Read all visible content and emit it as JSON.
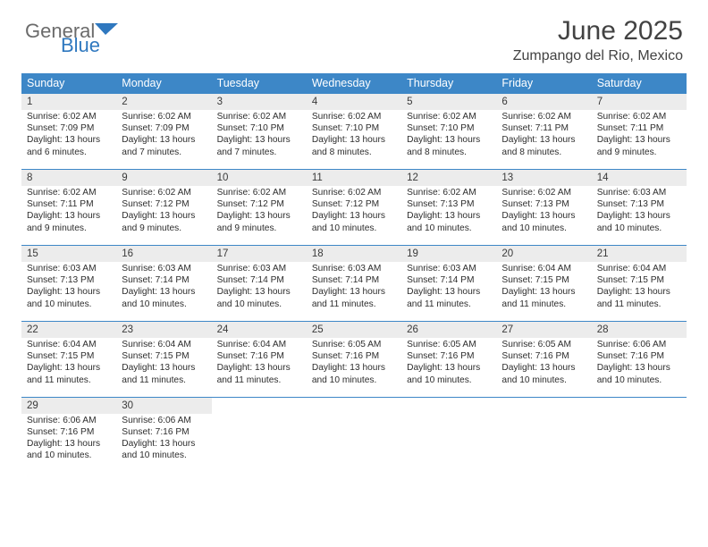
{
  "brand": {
    "text_a": "General",
    "text_b": "Blue",
    "color_a": "#6b6b6b",
    "color_b": "#2f78bf"
  },
  "title": {
    "month": "June 2025",
    "location": "Zumpango del Rio, Mexico",
    "color": "#424242"
  },
  "colors": {
    "header_bg": "#3d87c7",
    "daynum_bg": "#ececec",
    "week_border": "#3d87c7",
    "text": "#2d2d2d"
  },
  "layout": {
    "col_count": 7,
    "row_count": 5,
    "font_size_head": 12.5,
    "font_size_daynum": 11.5,
    "font_size_body": 10.2
  },
  "day_headers": [
    "Sunday",
    "Monday",
    "Tuesday",
    "Wednesday",
    "Thursday",
    "Friday",
    "Saturday"
  ],
  "weeks": [
    [
      {
        "n": "1",
        "sr": "Sunrise: 6:02 AM",
        "ss": "Sunset: 7:09 PM",
        "d1": "Daylight: 13 hours",
        "d2": "and 6 minutes."
      },
      {
        "n": "2",
        "sr": "Sunrise: 6:02 AM",
        "ss": "Sunset: 7:09 PM",
        "d1": "Daylight: 13 hours",
        "d2": "and 7 minutes."
      },
      {
        "n": "3",
        "sr": "Sunrise: 6:02 AM",
        "ss": "Sunset: 7:10 PM",
        "d1": "Daylight: 13 hours",
        "d2": "and 7 minutes."
      },
      {
        "n": "4",
        "sr": "Sunrise: 6:02 AM",
        "ss": "Sunset: 7:10 PM",
        "d1": "Daylight: 13 hours",
        "d2": "and 8 minutes."
      },
      {
        "n": "5",
        "sr": "Sunrise: 6:02 AM",
        "ss": "Sunset: 7:10 PM",
        "d1": "Daylight: 13 hours",
        "d2": "and 8 minutes."
      },
      {
        "n": "6",
        "sr": "Sunrise: 6:02 AM",
        "ss": "Sunset: 7:11 PM",
        "d1": "Daylight: 13 hours",
        "d2": "and 8 minutes."
      },
      {
        "n": "7",
        "sr": "Sunrise: 6:02 AM",
        "ss": "Sunset: 7:11 PM",
        "d1": "Daylight: 13 hours",
        "d2": "and 9 minutes."
      }
    ],
    [
      {
        "n": "8",
        "sr": "Sunrise: 6:02 AM",
        "ss": "Sunset: 7:11 PM",
        "d1": "Daylight: 13 hours",
        "d2": "and 9 minutes."
      },
      {
        "n": "9",
        "sr": "Sunrise: 6:02 AM",
        "ss": "Sunset: 7:12 PM",
        "d1": "Daylight: 13 hours",
        "d2": "and 9 minutes."
      },
      {
        "n": "10",
        "sr": "Sunrise: 6:02 AM",
        "ss": "Sunset: 7:12 PM",
        "d1": "Daylight: 13 hours",
        "d2": "and 9 minutes."
      },
      {
        "n": "11",
        "sr": "Sunrise: 6:02 AM",
        "ss": "Sunset: 7:12 PM",
        "d1": "Daylight: 13 hours",
        "d2": "and 10 minutes."
      },
      {
        "n": "12",
        "sr": "Sunrise: 6:02 AM",
        "ss": "Sunset: 7:13 PM",
        "d1": "Daylight: 13 hours",
        "d2": "and 10 minutes."
      },
      {
        "n": "13",
        "sr": "Sunrise: 6:02 AM",
        "ss": "Sunset: 7:13 PM",
        "d1": "Daylight: 13 hours",
        "d2": "and 10 minutes."
      },
      {
        "n": "14",
        "sr": "Sunrise: 6:03 AM",
        "ss": "Sunset: 7:13 PM",
        "d1": "Daylight: 13 hours",
        "d2": "and 10 minutes."
      }
    ],
    [
      {
        "n": "15",
        "sr": "Sunrise: 6:03 AM",
        "ss": "Sunset: 7:13 PM",
        "d1": "Daylight: 13 hours",
        "d2": "and 10 minutes."
      },
      {
        "n": "16",
        "sr": "Sunrise: 6:03 AM",
        "ss": "Sunset: 7:14 PM",
        "d1": "Daylight: 13 hours",
        "d2": "and 10 minutes."
      },
      {
        "n": "17",
        "sr": "Sunrise: 6:03 AM",
        "ss": "Sunset: 7:14 PM",
        "d1": "Daylight: 13 hours",
        "d2": "and 10 minutes."
      },
      {
        "n": "18",
        "sr": "Sunrise: 6:03 AM",
        "ss": "Sunset: 7:14 PM",
        "d1": "Daylight: 13 hours",
        "d2": "and 11 minutes."
      },
      {
        "n": "19",
        "sr": "Sunrise: 6:03 AM",
        "ss": "Sunset: 7:14 PM",
        "d1": "Daylight: 13 hours",
        "d2": "and 11 minutes."
      },
      {
        "n": "20",
        "sr": "Sunrise: 6:04 AM",
        "ss": "Sunset: 7:15 PM",
        "d1": "Daylight: 13 hours",
        "d2": "and 11 minutes."
      },
      {
        "n": "21",
        "sr": "Sunrise: 6:04 AM",
        "ss": "Sunset: 7:15 PM",
        "d1": "Daylight: 13 hours",
        "d2": "and 11 minutes."
      }
    ],
    [
      {
        "n": "22",
        "sr": "Sunrise: 6:04 AM",
        "ss": "Sunset: 7:15 PM",
        "d1": "Daylight: 13 hours",
        "d2": "and 11 minutes."
      },
      {
        "n": "23",
        "sr": "Sunrise: 6:04 AM",
        "ss": "Sunset: 7:15 PM",
        "d1": "Daylight: 13 hours",
        "d2": "and 11 minutes."
      },
      {
        "n": "24",
        "sr": "Sunrise: 6:04 AM",
        "ss": "Sunset: 7:16 PM",
        "d1": "Daylight: 13 hours",
        "d2": "and 11 minutes."
      },
      {
        "n": "25",
        "sr": "Sunrise: 6:05 AM",
        "ss": "Sunset: 7:16 PM",
        "d1": "Daylight: 13 hours",
        "d2": "and 10 minutes."
      },
      {
        "n": "26",
        "sr": "Sunrise: 6:05 AM",
        "ss": "Sunset: 7:16 PM",
        "d1": "Daylight: 13 hours",
        "d2": "and 10 minutes."
      },
      {
        "n": "27",
        "sr": "Sunrise: 6:05 AM",
        "ss": "Sunset: 7:16 PM",
        "d1": "Daylight: 13 hours",
        "d2": "and 10 minutes."
      },
      {
        "n": "28",
        "sr": "Sunrise: 6:06 AM",
        "ss": "Sunset: 7:16 PM",
        "d1": "Daylight: 13 hours",
        "d2": "and 10 minutes."
      }
    ],
    [
      {
        "n": "29",
        "sr": "Sunrise: 6:06 AM",
        "ss": "Sunset: 7:16 PM",
        "d1": "Daylight: 13 hours",
        "d2": "and 10 minutes."
      },
      {
        "n": "30",
        "sr": "Sunrise: 6:06 AM",
        "ss": "Sunset: 7:16 PM",
        "d1": "Daylight: 13 hours",
        "d2": "and 10 minutes."
      },
      {
        "empty": true
      },
      {
        "empty": true
      },
      {
        "empty": true
      },
      {
        "empty": true
      },
      {
        "empty": true
      }
    ]
  ]
}
